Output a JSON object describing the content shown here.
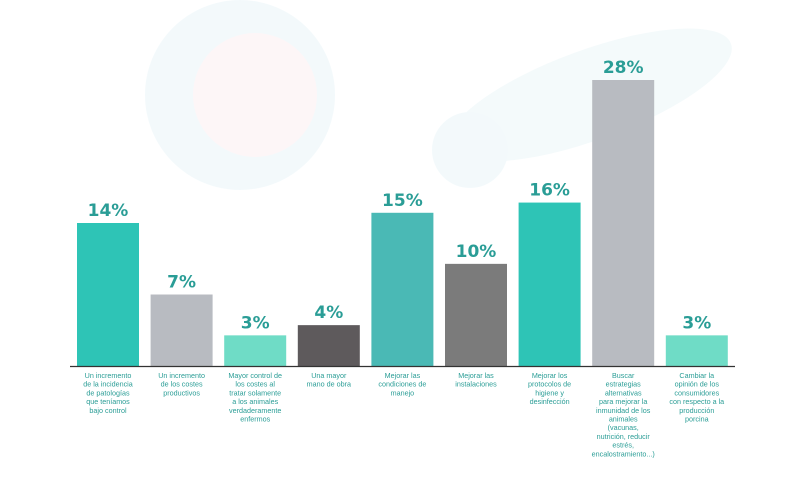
{
  "chart_data": {
    "type": "bar",
    "categories": [
      [
        "Un incremento",
        "de la incidencia",
        "de patologías",
        "que teníamos",
        "bajo control"
      ],
      [
        "Un incremento",
        "de los costes",
        "productivos"
      ],
      [
        "Mayor control de",
        "los costes al",
        "tratar solamente",
        "a los animales",
        "verdaderamente",
        "enfermos"
      ],
      [
        "Una mayor",
        "mano de obra"
      ],
      [
        "Mejorar las",
        "condiciones de",
        "manejo"
      ],
      [
        "Mejorar las",
        "instalaciones"
      ],
      [
        "Mejorar los",
        "protocolos de",
        "higiene y",
        "desinfección"
      ],
      [
        "Buscar",
        "estrategias",
        "alternativas",
        "para mejorar la",
        "inmunidad de los",
        "animales",
        "(vacunas,",
        "nutrición, reducir",
        "estrés,",
        "encalostramiento...)"
      ],
      [
        "Cambiar la",
        "opinión de los",
        "consumidores",
        "con respecto a la",
        "producción",
        "porcina"
      ]
    ],
    "values": [
      14,
      7,
      3,
      4,
      15,
      10,
      16,
      28,
      3
    ],
    "value_labels": [
      "14%",
      "7%",
      "3%",
      "4%",
      "15%",
      "10%",
      "16%",
      "28%",
      "3%"
    ],
    "colors": [
      "#2ec4b6",
      "#b8bbc1",
      "#6fdcc6",
      "#5e5a5c",
      "#4ab9b5",
      "#7b7b7b",
      "#2ec4b6",
      "#b8bbc1",
      "#6fdcc6"
    ],
    "ylim": [
      0,
      28
    ],
    "title": "",
    "xlabel": "",
    "ylabel": "",
    "grid": false,
    "legend": "none",
    "label_color": "#2a9d96",
    "axis_color": "#333333"
  }
}
